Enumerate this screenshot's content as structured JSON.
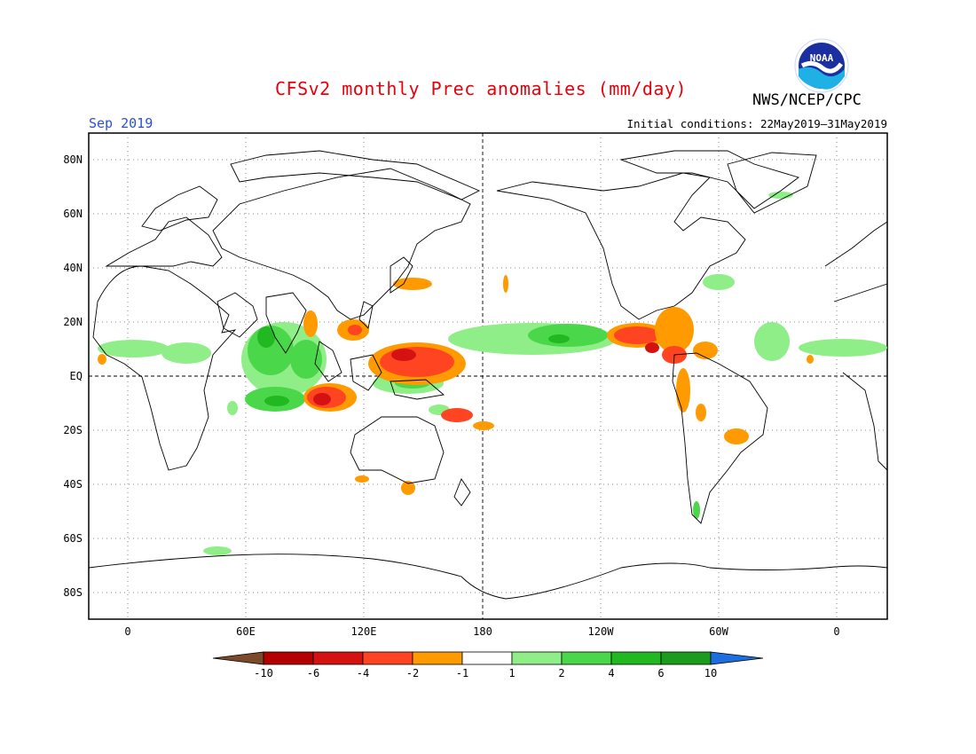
{
  "title": "CFSv2 monthly Prec anomalies (mm/day)",
  "agency": "NWS/NCEP/CPC",
  "logo_text": "NOAA",
  "month": "Sep 2019",
  "initial_conditions": "Initial conditions: 22May2019–31May2019",
  "map": {
    "lat_labels": [
      "80N",
      "60N",
      "40N",
      "20N",
      "EQ",
      "20S",
      "40S",
      "60S",
      "80S"
    ],
    "lon_labels": [
      "0",
      "60E",
      "120E",
      "180",
      "120W",
      "60W",
      "0"
    ]
  },
  "legend": {
    "labels": [
      "-10",
      "-6",
      "-4",
      "-2",
      "-1",
      "1",
      "2",
      "4",
      "6",
      "10"
    ],
    "colors": [
      "#7a4a2a",
      "#b40000",
      "#d51212",
      "#ff4422",
      "#ff9a00",
      "#ffffff",
      "#90ee88",
      "#4ad84a",
      "#22b822",
      "#1c9c1c",
      "#1e6ee0"
    ]
  },
  "colors": {
    "title": "#e8000b",
    "month": "#2b4fd6",
    "wet_light": "#90ee88",
    "wet_mid": "#4ad84a",
    "wet_dark": "#22b822",
    "dry_light": "#ff9a00",
    "dry_mid": "#ff4422",
    "dry_dark": "#d51212"
  }
}
